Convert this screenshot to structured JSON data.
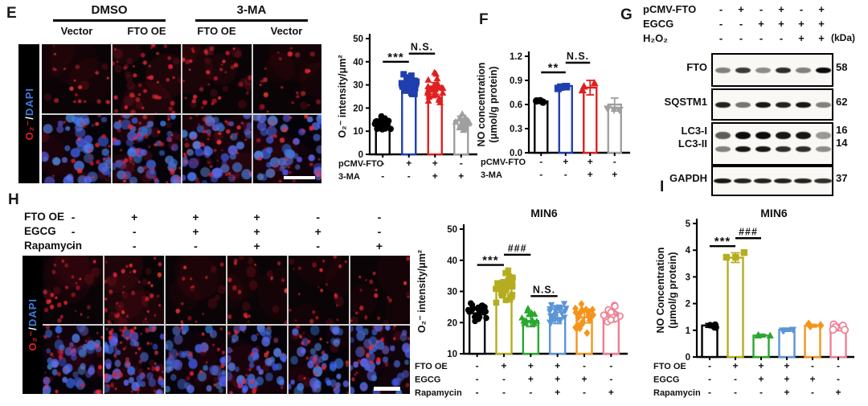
{
  "panels": {
    "e": {
      "label": "E",
      "group_headers": [
        "DMSO",
        "3-MA"
      ],
      "col_headers": [
        "Vector",
        "FTO OE",
        "FTO OE",
        "Vector"
      ],
      "stain_label": {
        "red": "O₂⁻",
        "sep": "/",
        "blue": "DAPI"
      },
      "red_intensity_by_col": [
        0.3,
        1.0,
        0.85,
        0.35
      ]
    },
    "f": {
      "label": "F"
    },
    "g": {
      "label": "G",
      "conditions": {
        "labels": [
          "pCMV-FTO",
          "EGCG",
          "H₂O₂"
        ],
        "matrix": [
          [
            "-",
            "+",
            "-",
            "+",
            "-",
            "+"
          ],
          [
            "-",
            "-",
            "+",
            "+",
            "+",
            "+"
          ],
          [
            "-",
            "-",
            "-",
            "-",
            "+",
            "+"
          ]
        ],
        "unit_note": "(kDa)"
      },
      "blots": [
        {
          "label_lines": [
            "FTO"
          ],
          "kda": [
            "58"
          ],
          "band_rows": [
            [
              0.5,
              0.8,
              0.45,
              0.85,
              0.5,
              1.0
            ]
          ]
        },
        {
          "label_lines": [
            "SQSTM1"
          ],
          "kda": [
            "62"
          ],
          "band_rows": [
            [
              0.9,
              0.55,
              0.95,
              0.9,
              0.95,
              0.5
            ]
          ]
        },
        {
          "label_lines": [
            "LC3-I",
            "LC3-II"
          ],
          "kda": [
            "16",
            "14"
          ],
          "band_rows": [
            [
              0.65,
              1.0,
              1.0,
              0.95,
              0.95,
              0.4
            ],
            [
              0.5,
              0.95,
              0.95,
              0.85,
              0.85,
              0.45
            ]
          ]
        },
        {
          "label_lines": [
            "GAPDH"
          ],
          "kda": [
            "37"
          ],
          "band_rows": [
            [
              0.95,
              0.9,
              0.9,
              0.9,
              0.9,
              0.85
            ]
          ]
        }
      ]
    },
    "h": {
      "label": "H",
      "conditions": {
        "labels": [
          "FTO OE",
          "EGCG",
          "Rapamycin"
        ],
        "matrix": [
          [
            "-",
            "+",
            "+",
            "+",
            "-",
            "-"
          ],
          [
            "-",
            "-",
            "+",
            "+",
            "+",
            "-"
          ],
          [
            "-",
            "-",
            "-",
            "+",
            "-",
            "+"
          ]
        ]
      },
      "stain_label": {
        "red": "O₂⁻",
        "sep": "/",
        "blue": "DAPI"
      },
      "red_intensity_by_col": [
        0.5,
        1.0,
        0.25,
        0.35,
        0.35,
        0.3
      ]
    },
    "i": {
      "label": "I"
    }
  },
  "chart_data": [
    {
      "id": "chart-e",
      "type": "bar",
      "title": "",
      "ylabel_lines": [
        "O₂⁻ intensity/μm²"
      ],
      "ylim": [
        0,
        50
      ],
      "yticks": [
        "0",
        "10",
        "20",
        "30",
        "40",
        "50"
      ],
      "bars": [
        {
          "value": 14,
          "err": 2.5,
          "color": "#000000",
          "marker": "circle",
          "scatter": {
            "n": 22,
            "min": 9,
            "max": 18
          }
        },
        {
          "value": 31,
          "err": 2.0,
          "color": "#1f3fae",
          "marker": "square",
          "scatter": {
            "n": 30,
            "min": 24.5,
            "max": 36
          }
        },
        {
          "value": 28.5,
          "err": 2.5,
          "color": "#e02020",
          "marker": "triangle",
          "scatter": {
            "n": 30,
            "min": 21,
            "max": 36
          }
        },
        {
          "value": 14.5,
          "err": 2.0,
          "color": "#9f9f9f",
          "marker": "triangle",
          "scatter": {
            "n": 20,
            "min": 10,
            "max": 18.5
          }
        }
      ],
      "sig": [
        {
          "i": 0,
          "j": 1,
          "label": "***",
          "y": 40
        },
        {
          "i": 1,
          "j": 2,
          "label": "N.S.",
          "y": 43.5
        }
      ],
      "conditions": {
        "labels": [
          "pCMV-FTO",
          "3-MA"
        ],
        "matrix": [
          [
            "-",
            "+",
            "+",
            "-"
          ],
          [
            "-",
            "-",
            "+",
            "+"
          ]
        ]
      }
    },
    {
      "id": "chart-f",
      "type": "bar",
      "title": "",
      "ylabel_lines": [
        "NO concentration",
        "(μmol/g protein)"
      ],
      "ylim": [
        0,
        1.2
      ],
      "yticks": [
        "0.0",
        "0.3",
        "0.6",
        "0.9",
        "1.2"
      ],
      "bars": [
        {
          "value": 0.64,
          "err": 0.02,
          "color": "#000000",
          "marker": "circle",
          "scatter": {
            "n": 3,
            "min": 0.62,
            "max": 0.66
          }
        },
        {
          "value": 0.83,
          "err": 0.03,
          "color": "#1f3fae",
          "marker": "square",
          "scatter": {
            "n": 3,
            "min": 0.79,
            "max": 0.87
          }
        },
        {
          "value": 0.81,
          "err": 0.09,
          "color": "#e02020",
          "marker": "triangle",
          "scatter": {
            "n": 3,
            "min": 0.7,
            "max": 0.93
          }
        },
        {
          "value": 0.6,
          "err": 0.08,
          "color": "#9f9f9f",
          "marker": "triangle-down",
          "scatter": {
            "n": 3,
            "min": 0.5,
            "max": 0.66
          }
        }
      ],
      "sig": [
        {
          "i": 0,
          "j": 1,
          "label": "**",
          "y": 1.0
        },
        {
          "i": 1,
          "j": 2,
          "label": "N.S.",
          "y": 1.12
        }
      ],
      "conditions": {
        "labels": [
          "pCMV-FTO",
          "3-MA"
        ],
        "matrix": [
          [
            "-",
            "+",
            "+",
            "-"
          ],
          [
            "-",
            "-",
            "+",
            "+"
          ]
        ]
      }
    },
    {
      "id": "chart-h",
      "type": "bar",
      "title": "MIN6",
      "ylabel_lines": [
        "O₂⁻ intensity/μm²"
      ],
      "ylim": [
        10,
        50
      ],
      "yticks": [
        "10",
        "20",
        "30",
        "40",
        "50"
      ],
      "bars": [
        {
          "value": 23,
          "err": 1.5,
          "color": "#000000",
          "marker": "circle",
          "scatter": {
            "n": 22,
            "min": 19,
            "max": 27
          }
        },
        {
          "value": 31.5,
          "err": 2.0,
          "color": "#b5ad1f",
          "marker": "square",
          "scatter": {
            "n": 34,
            "min": 26,
            "max": 37.5
          }
        },
        {
          "value": 20.5,
          "err": 1.8,
          "color": "#2aa72e",
          "marker": "triangle",
          "scatter": {
            "n": 18,
            "min": 17,
            "max": 26
          }
        },
        {
          "value": 21.5,
          "err": 1.8,
          "color": "#5b95d6",
          "marker": "triangle-down",
          "scatter": {
            "n": 24,
            "min": 17,
            "max": 27.5
          }
        },
        {
          "value": 21.7,
          "err": 1.8,
          "color": "#f5941d",
          "marker": "diamond",
          "scatter": {
            "n": 24,
            "min": 16,
            "max": 27.5
          }
        },
        {
          "value": 22,
          "err": 1.8,
          "color": "#ee7f93",
          "marker": "circle-open",
          "scatter": {
            "n": 16,
            "min": 17,
            "max": 26
          }
        }
      ],
      "sig": [
        {
          "i": 0,
          "j": 1,
          "label": "***",
          "y": 38.5
        },
        {
          "i": 1,
          "j": 2,
          "label": "###",
          "y": 41.8
        },
        {
          "i": 2,
          "j": 3,
          "label": "N.S.",
          "y": 28.5
        }
      ],
      "conditions": {
        "labels": [
          "FTO OE",
          "EGCG",
          "Rapamycin"
        ],
        "matrix": [
          [
            "-",
            "+",
            "+",
            "+",
            "-",
            "-"
          ],
          [
            "-",
            "-",
            "+",
            "+",
            "+",
            "-"
          ],
          [
            "-",
            "-",
            "-",
            "+",
            "-",
            "+"
          ]
        ]
      }
    },
    {
      "id": "chart-i",
      "type": "bar",
      "title": "MIN6",
      "ylabel_lines": [
        "NO Concentration",
        "(μmol/g protein)"
      ],
      "ylim": [
        0,
        5
      ],
      "yticks": [
        "0",
        "1",
        "2",
        "3",
        "4",
        "5"
      ],
      "bars": [
        {
          "value": 1.18,
          "err": 0.07,
          "color": "#000000",
          "marker": "circle",
          "scatter": {
            "n": 4,
            "min": 1.08,
            "max": 1.3
          }
        },
        {
          "value": 3.72,
          "err": 0.18,
          "color": "#b5ad1f",
          "marker": "square",
          "scatter": {
            "n": 3,
            "min": 3.45,
            "max": 4.0
          }
        },
        {
          "value": 0.8,
          "err": 0.05,
          "color": "#2aa72e",
          "marker": "triangle",
          "scatter": {
            "n": 3,
            "min": 0.74,
            "max": 0.86
          }
        },
        {
          "value": 1.02,
          "err": 0.06,
          "color": "#5b95d6",
          "marker": "triangle-down",
          "scatter": {
            "n": 3,
            "min": 0.95,
            "max": 1.1
          }
        },
        {
          "value": 1.17,
          "err": 0.05,
          "color": "#f5941d",
          "marker": "diamond",
          "scatter": {
            "n": 3,
            "min": 1.1,
            "max": 1.27
          }
        },
        {
          "value": 1.1,
          "err": 0.12,
          "color": "#ee7f93",
          "marker": "circle-open",
          "scatter": {
            "n": 5,
            "min": 0.95,
            "max": 1.32
          }
        }
      ],
      "sig": [
        {
          "i": 0,
          "j": 1,
          "label": "***",
          "y": 4.15
        },
        {
          "i": 1,
          "j": 2,
          "label": "###",
          "y": 4.45
        }
      ],
      "conditions": {
        "labels": [
          "FTO OE",
          "EGCG",
          "Rapamycin"
        ],
        "matrix": [
          [
            "-",
            "+",
            "+",
            "+",
            "-",
            "-"
          ],
          [
            "-",
            "-",
            "+",
            "+",
            "+",
            "-"
          ],
          [
            "-",
            "-",
            "-",
            "+",
            "-",
            "+"
          ]
        ]
      }
    }
  ],
  "colors": {
    "stain_red": "#e8192c",
    "stain_blue": "#3f7de0"
  }
}
